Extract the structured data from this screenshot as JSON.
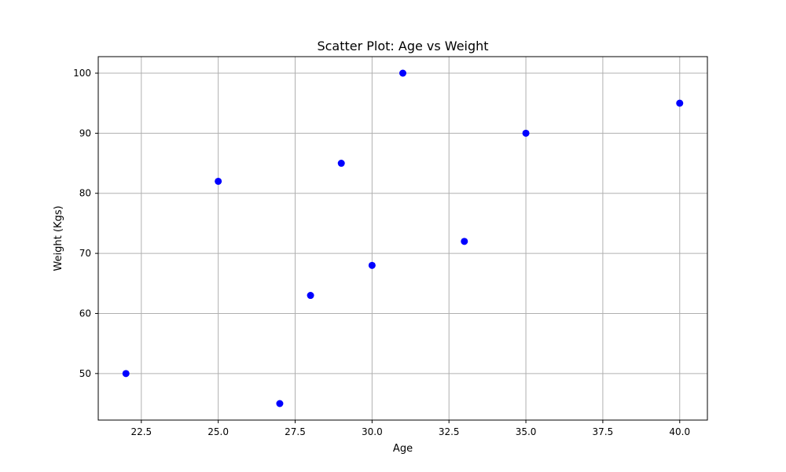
{
  "chart_data": {
    "type": "scatter",
    "title": "Scatter Plot: Age vs Weight",
    "xlabel": "Age",
    "ylabel": "Weight (Kgs)",
    "xlim": [
      21.1,
      40.9
    ],
    "ylim": [
      42.25,
      102.75
    ],
    "xticks": [
      22.5,
      25.0,
      27.5,
      30.0,
      32.5,
      35.0,
      37.5,
      40.0
    ],
    "xtick_labels": [
      "22.5",
      "25.0",
      "27.5",
      "30.0",
      "32.5",
      "35.0",
      "37.5",
      "40.0"
    ],
    "yticks": [
      50,
      60,
      70,
      80,
      90,
      100
    ],
    "ytick_labels": [
      "50",
      "60",
      "70",
      "80",
      "90",
      "100"
    ],
    "grid": true,
    "marker_color": "#0000ff",
    "grid_color": "#b0b0b0",
    "series": [
      {
        "x": [
          22,
          25,
          27,
          28,
          29,
          30,
          31,
          33,
          35,
          40
        ],
        "y": [
          50,
          82,
          45,
          63,
          85,
          68,
          100,
          72,
          90,
          95
        ]
      }
    ]
  }
}
